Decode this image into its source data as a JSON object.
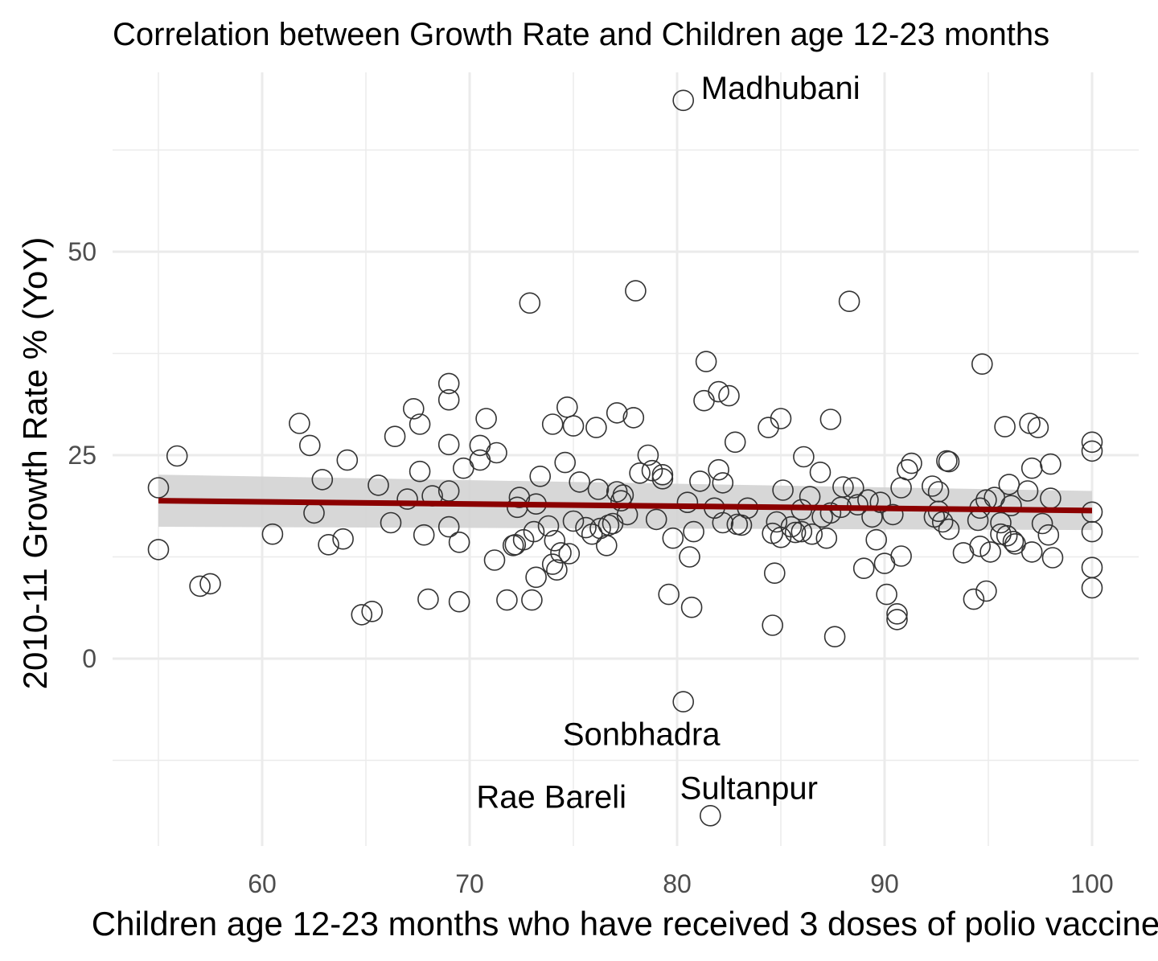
{
  "chart_data": {
    "type": "scatter",
    "title": "Correlation between Growth Rate and Children age 12-23 months",
    "xlabel": "Children age 12-23 months who have received 3 doses of polio vaccine",
    "ylabel": "2010-11 Growth Rate % (YoY)",
    "xlim": [
      52.8,
      102.3
    ],
    "ylim": [
      -21.8,
      72.8
    ],
    "x_ticks": [
      60,
      70,
      80,
      90,
      100
    ],
    "y_ticks": [
      0,
      25,
      50
    ],
    "x_tick_labels": [
      "60",
      "70",
      "80",
      "90",
      "100"
    ],
    "y_tick_labels": [
      "0",
      "25",
      "50"
    ],
    "grid": true,
    "legend": "none",
    "colors": {
      "point_stroke": "#333333",
      "trend_line": "#8b0000",
      "confidence_band": "#d3d3d3",
      "grid": "#ebebeb"
    },
    "trend": {
      "x": [
        55,
        100
      ],
      "y": [
        19.4,
        18.2
      ],
      "band_lower": [
        16.2,
        15.8
      ],
      "band_upper": [
        22.6,
        20.6
      ]
    },
    "points": [
      [
        55.0,
        21.0
      ],
      [
        55.0,
        13.4
      ],
      [
        55.9,
        24.9
      ],
      [
        57.0,
        8.9
      ],
      [
        57.5,
        9.2
      ],
      [
        60.5,
        15.3
      ],
      [
        61.8,
        28.9
      ],
      [
        62.3,
        26.2
      ],
      [
        62.5,
        17.9
      ],
      [
        62.9,
        22.0
      ],
      [
        63.2,
        14.0
      ],
      [
        63.9,
        14.7
      ],
      [
        64.1,
        24.4
      ],
      [
        64.8,
        5.4
      ],
      [
        65.3,
        5.8
      ],
      [
        65.6,
        21.3
      ],
      [
        66.2,
        16.7
      ],
      [
        66.4,
        27.3
      ],
      [
        67.0,
        19.6
      ],
      [
        67.3,
        30.7
      ],
      [
        67.6,
        23.0
      ],
      [
        67.6,
        28.8
      ],
      [
        67.8,
        15.2
      ],
      [
        68.0,
        7.3
      ],
      [
        68.2,
        20.0
      ],
      [
        69.0,
        33.8
      ],
      [
        69.0,
        31.8
      ],
      [
        69.0,
        26.3
      ],
      [
        69.0,
        20.6
      ],
      [
        69.0,
        16.2
      ],
      [
        69.5,
        7.0
      ],
      [
        69.5,
        14.3
      ],
      [
        69.7,
        23.4
      ],
      [
        70.5,
        26.2
      ],
      [
        70.5,
        24.4
      ],
      [
        70.8,
        29.5
      ],
      [
        71.3,
        25.3
      ],
      [
        71.2,
        12.1
      ],
      [
        71.8,
        7.2
      ],
      [
        72.1,
        13.9
      ],
      [
        72.2,
        14.0
      ],
      [
        72.3,
        18.6
      ],
      [
        72.4,
        19.8
      ],
      [
        72.6,
        14.6
      ],
      [
        72.9,
        43.7
      ],
      [
        73.0,
        7.2
      ],
      [
        73.1,
        15.6
      ],
      [
        73.2,
        19.0
      ],
      [
        73.2,
        10.0
      ],
      [
        73.4,
        22.4
      ],
      [
        73.8,
        16.3
      ],
      [
        74.0,
        28.8
      ],
      [
        74.0,
        11.6
      ],
      [
        74.1,
        14.5
      ],
      [
        74.2,
        10.9
      ],
      [
        74.4,
        13.0
      ],
      [
        74.6,
        24.1
      ],
      [
        74.7,
        30.9
      ],
      [
        74.8,
        12.9
      ],
      [
        75.0,
        16.9
      ],
      [
        75.0,
        28.6
      ],
      [
        75.3,
        21.7
      ],
      [
        75.6,
        16.1
      ],
      [
        75.9,
        15.3
      ],
      [
        76.2,
        20.8
      ],
      [
        76.1,
        28.4
      ],
      [
        76.3,
        16.0
      ],
      [
        76.6,
        13.9
      ],
      [
        76.7,
        16.4
      ],
      [
        76.9,
        16.6
      ],
      [
        77.1,
        30.2
      ],
      [
        77.1,
        20.5
      ],
      [
        77.3,
        19.4
      ],
      [
        77.4,
        20.1
      ],
      [
        77.6,
        17.7
      ],
      [
        77.9,
        29.6
      ],
      [
        78.0,
        45.2
      ],
      [
        78.2,
        22.8
      ],
      [
        78.6,
        25.0
      ],
      [
        78.8,
        23.1
      ],
      [
        79.0,
        17.1
      ],
      [
        79.3,
        22.6
      ],
      [
        79.3,
        22.1
      ],
      [
        79.6,
        7.9
      ],
      [
        79.8,
        14.8
      ],
      [
        80.3,
        68.6
      ],
      [
        80.3,
        -5.3
      ],
      [
        80.5,
        19.2
      ],
      [
        80.6,
        12.5
      ],
      [
        80.7,
        6.3
      ],
      [
        80.8,
        15.6
      ],
      [
        81.1,
        21.8
      ],
      [
        81.3,
        31.7
      ],
      [
        81.4,
        36.5
      ],
      [
        81.6,
        -19.3
      ],
      [
        81.8,
        18.5
      ],
      [
        82.0,
        32.8
      ],
      [
        82.0,
        23.2
      ],
      [
        82.2,
        21.6
      ],
      [
        82.2,
        16.7
      ],
      [
        82.5,
        32.3
      ],
      [
        82.8,
        26.6
      ],
      [
        82.9,
        16.5
      ],
      [
        83.1,
        16.4
      ],
      [
        83.4,
        18.5
      ],
      [
        84.4,
        28.4
      ],
      [
        84.6,
        4.1
      ],
      [
        84.6,
        15.4
      ],
      [
        84.7,
        10.5
      ],
      [
        84.8,
        16.8
      ],
      [
        85.0,
        29.5
      ],
      [
        85.0,
        14.9
      ],
      [
        85.1,
        20.7
      ],
      [
        85.5,
        16.2
      ],
      [
        85.7,
        15.5
      ],
      [
        86.0,
        18.3
      ],
      [
        86.0,
        15.6
      ],
      [
        86.1,
        24.8
      ],
      [
        86.4,
        19.9
      ],
      [
        86.5,
        15.3
      ],
      [
        86.9,
        22.9
      ],
      [
        87.0,
        17.4
      ],
      [
        87.2,
        14.8
      ],
      [
        87.4,
        29.4
      ],
      [
        87.4,
        17.9
      ],
      [
        87.6,
        2.7
      ],
      [
        87.9,
        18.6
      ],
      [
        88.0,
        21.1
      ],
      [
        88.3,
        43.9
      ],
      [
        88.5,
        21.0
      ],
      [
        88.7,
        18.9
      ],
      [
        89.0,
        11.1
      ],
      [
        89.2,
        19.5
      ],
      [
        89.4,
        17.4
      ],
      [
        89.6,
        14.6
      ],
      [
        89.8,
        19.2
      ],
      [
        90.0,
        11.7
      ],
      [
        90.1,
        7.9
      ],
      [
        90.4,
        17.7
      ],
      [
        90.6,
        5.5
      ],
      [
        90.6,
        4.8
      ],
      [
        90.8,
        12.6
      ],
      [
        90.8,
        21.0
      ],
      [
        91.1,
        23.2
      ],
      [
        91.3,
        24.0
      ],
      [
        92.3,
        21.2
      ],
      [
        92.4,
        17.4
      ],
      [
        92.6,
        18.1
      ],
      [
        92.6,
        20.5
      ],
      [
        92.8,
        16.8
      ],
      [
        93.0,
        24.3
      ],
      [
        93.1,
        24.2
      ],
      [
        93.1,
        15.9
      ],
      [
        93.8,
        13.0
      ],
      [
        94.3,
        7.3
      ],
      [
        94.5,
        17.0
      ],
      [
        94.6,
        18.5
      ],
      [
        94.6,
        13.8
      ],
      [
        94.7,
        36.2
      ],
      [
        94.9,
        19.5
      ],
      [
        94.9,
        8.3
      ],
      [
        95.1,
        13.1
      ],
      [
        95.3,
        19.8
      ],
      [
        95.6,
        16.7
      ],
      [
        95.6,
        15.3
      ],
      [
        95.8,
        28.5
      ],
      [
        95.9,
        15.1
      ],
      [
        96.0,
        21.4
      ],
      [
        96.1,
        18.8
      ],
      [
        96.2,
        14.4
      ],
      [
        96.3,
        14.1
      ],
      [
        96.9,
        20.6
      ],
      [
        97.0,
        28.9
      ],
      [
        97.1,
        13.1
      ],
      [
        97.1,
        23.4
      ],
      [
        97.4,
        28.4
      ],
      [
        97.6,
        16.6
      ],
      [
        97.9,
        15.2
      ],
      [
        98.0,
        23.9
      ],
      [
        98.0,
        19.7
      ],
      [
        98.1,
        12.4
      ],
      [
        100.0,
        26.6
      ],
      [
        100.0,
        25.5
      ],
      [
        100.0,
        18.0
      ],
      [
        100.0,
        15.6
      ],
      [
        100.0,
        11.2
      ],
      [
        100.0,
        8.7
      ]
    ],
    "annotations": [
      {
        "label": "Madhubani",
        "x": 80.3,
        "y": 68.6,
        "anchor": "right"
      },
      {
        "label": "Sonbhadra",
        "x": 76.5,
        "y": -13.0,
        "anchor": "above"
      },
      {
        "label": "Rae Bareli",
        "x": 76.5,
        "y": -13.0,
        "anchor": "below-left"
      },
      {
        "label": "Sultanpur",
        "x": 81.6,
        "y": -19.3,
        "anchor": "above-right"
      }
    ]
  }
}
